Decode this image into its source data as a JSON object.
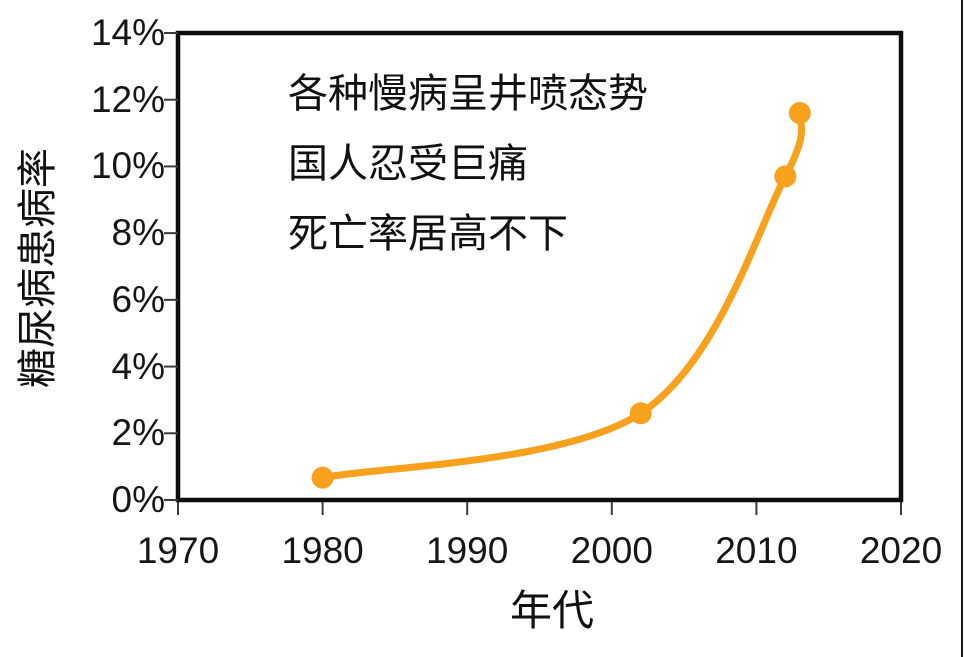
{
  "page": {
    "background": "#ffffff",
    "right_edge_line_color": "#1a1a1a"
  },
  "chart_data": {
    "type": "line",
    "title": "",
    "xlabel": "年代",
    "ylabel": "糖尿病患病率",
    "series": [
      {
        "name": "糖尿病患病率",
        "x": [
          1980,
          2002,
          2012,
          2013
        ],
        "y_percent": [
          0.67,
          2.6,
          9.7,
          11.6
        ],
        "color": "#F7A11C",
        "marker": "circle",
        "line_style": "smooth"
      }
    ],
    "xlim": [
      1970,
      2020
    ],
    "ylim_percent": [
      0,
      14
    ],
    "xticks": [
      1970,
      1980,
      1990,
      2000,
      2010,
      2020
    ],
    "xtick_labels": [
      "1970",
      "1980",
      "1990",
      "2000",
      "2010",
      "2020"
    ],
    "yticks": [
      0,
      2,
      4,
      6,
      8,
      10,
      12,
      14
    ],
    "ytick_labels": [
      "0%",
      "2%",
      "4%",
      "6%",
      "8%",
      "10%",
      "12%",
      "14%"
    ],
    "grid": false,
    "legend": "none",
    "annotations": [
      "各种慢病呈井喷态势",
      "国人忍受巨痛",
      "死亡率居高不下"
    ],
    "axis_color": "#0d0d0d",
    "tick_color": "#3a3a3a",
    "text_color": "#161616"
  }
}
